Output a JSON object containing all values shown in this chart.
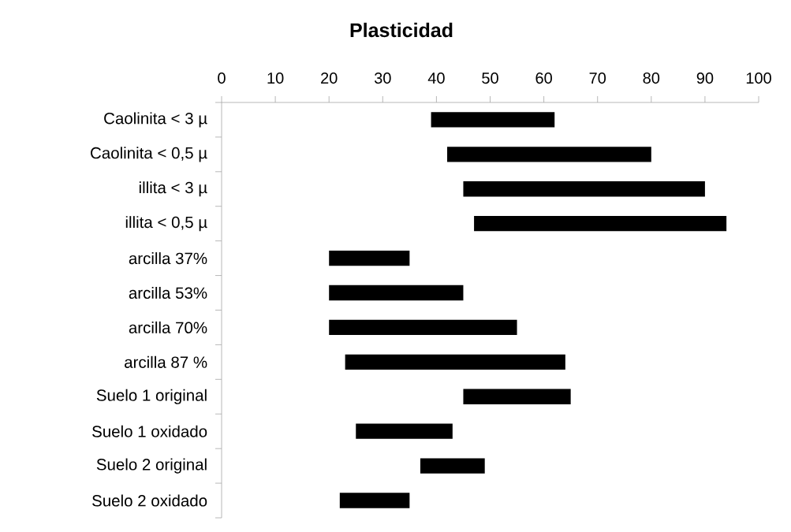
{
  "chart_data": {
    "type": "bar",
    "orientation": "horizontal",
    "title": "Plasticidad",
    "categories": [
      "Caolinita < 3 µ",
      "Caolinita < 0,5 µ",
      "illita < 3 µ",
      "illita < 0,5 µ",
      "arcilla 37%",
      "arcilla 53%",
      "arcilla 70%",
      "arcilla 87 %",
      "Suelo 1 original",
      "Suelo 1 oxidado",
      "Suelo 2 original",
      "Suelo 2 oxidado"
    ],
    "base": [
      39,
      42,
      45,
      47,
      20,
      20,
      20,
      23,
      45,
      25,
      37,
      22
    ],
    "values": [
      23,
      38,
      45,
      47,
      15,
      25,
      35,
      41,
      20,
      18,
      12,
      13
    ],
    "color": "#000000",
    "xlim": [
      0,
      100
    ],
    "xticks": [
      0,
      10,
      20,
      30,
      40,
      50,
      60,
      70,
      80,
      90,
      100
    ],
    "grid": false
  }
}
